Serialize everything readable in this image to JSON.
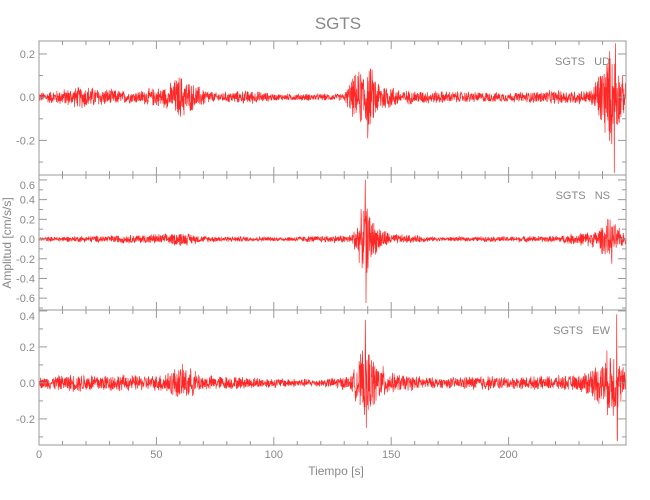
{
  "chart_data": {
    "type": "line",
    "title": "SGTS",
    "xlabel": "Tiempo [s]",
    "ylabel": "Amplitud [cm/s/s]",
    "xlim": [
      0,
      250
    ],
    "xticks": [
      0,
      50,
      100,
      150,
      200
    ],
    "line_color": "#ff0000",
    "axis_color": "#999999",
    "panels": [
      {
        "name": "SGTS   UD",
        "ylim": [
          -0.36,
          0.26
        ],
        "yticks": [
          -0.2,
          0.0,
          0.2
        ],
        "envelope": [
          [
            0,
            0.02
          ],
          [
            20,
            0.05
          ],
          [
            25,
            0.04
          ],
          [
            40,
            0.025
          ],
          [
            55,
            0.05
          ],
          [
            60,
            0.1
          ],
          [
            65,
            0.06
          ],
          [
            75,
            0.02
          ],
          [
            90,
            0.03
          ],
          [
            100,
            0.015
          ],
          [
            130,
            0.015
          ],
          [
            133,
            0.08
          ],
          [
            140,
            0.15
          ],
          [
            145,
            0.07
          ],
          [
            155,
            0.03
          ],
          [
            200,
            0.02
          ],
          [
            220,
            0.03
          ],
          [
            235,
            0.03
          ],
          [
            240,
            0.15
          ],
          [
            244,
            0.22
          ],
          [
            248,
            0.1
          ],
          [
            250,
            0.05
          ]
        ],
        "spikes": [
          [
            140,
            -0.19
          ],
          [
            245,
            -0.35
          ],
          [
            245.5,
            0.25
          ]
        ]
      },
      {
        "name": "SGTS   NS",
        "ylim": [
          -0.72,
          0.65
        ],
        "yticks": [
          -0.6,
          -0.4,
          -0.2,
          0.0,
          0.2,
          0.4,
          0.6
        ],
        "envelope": [
          [
            0,
            0.02
          ],
          [
            20,
            0.03
          ],
          [
            55,
            0.05
          ],
          [
            60,
            0.07
          ],
          [
            70,
            0.03
          ],
          [
            100,
            0.02
          ],
          [
            133,
            0.04
          ],
          [
            139,
            0.35
          ],
          [
            143,
            0.15
          ],
          [
            150,
            0.05
          ],
          [
            170,
            0.02
          ],
          [
            220,
            0.03
          ],
          [
            237,
            0.08
          ],
          [
            243,
            0.2
          ],
          [
            248,
            0.08
          ],
          [
            250,
            0.05
          ]
        ],
        "spikes": [
          [
            139,
            0.6
          ],
          [
            139.3,
            -0.65
          ],
          [
            244,
            -0.25
          ]
        ]
      },
      {
        "name": "SGTS   EW",
        "ylim": [
          -0.345,
          0.405
        ],
        "yticks": [
          -0.2,
          0.0,
          0.2,
          0.4
        ],
        "envelope": [
          [
            0,
            0.03
          ],
          [
            20,
            0.05
          ],
          [
            40,
            0.04
          ],
          [
            50,
            0.04
          ],
          [
            58,
            0.08
          ],
          [
            62,
            0.09
          ],
          [
            70,
            0.04
          ],
          [
            100,
            0.025
          ],
          [
            120,
            0.02
          ],
          [
            133,
            0.04
          ],
          [
            139,
            0.2
          ],
          [
            143,
            0.12
          ],
          [
            150,
            0.05
          ],
          [
            170,
            0.025
          ],
          [
            190,
            0.04
          ],
          [
            200,
            0.03
          ],
          [
            230,
            0.04
          ],
          [
            240,
            0.12
          ],
          [
            244,
            0.2
          ],
          [
            248,
            0.1
          ],
          [
            250,
            0.06
          ]
        ],
        "spikes": [
          [
            139,
            0.35
          ],
          [
            139.4,
            -0.25
          ],
          [
            246,
            0.38
          ],
          [
            246.3,
            -0.32
          ]
        ]
      }
    ]
  }
}
